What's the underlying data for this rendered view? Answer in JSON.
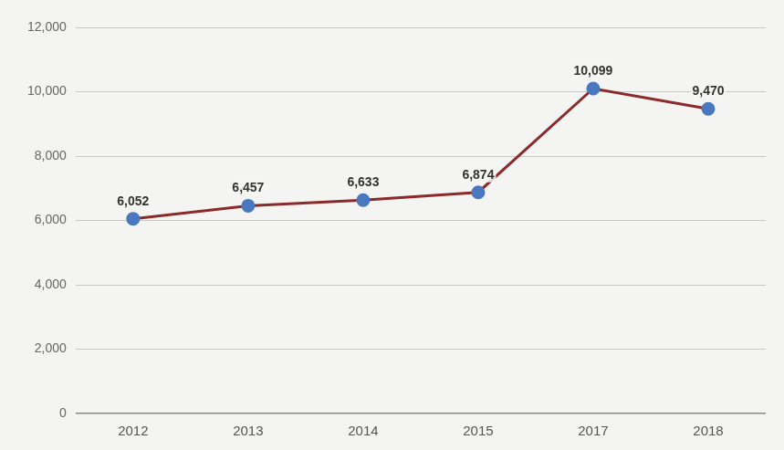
{
  "chart_data": {
    "type": "line",
    "categories": [
      "2012",
      "2013",
      "2014",
      "2015",
      "2017",
      "2018"
    ],
    "values": [
      6052,
      6457,
      6633,
      6874,
      10099,
      9470
    ],
    "value_labels": [
      "6,052",
      "6,457",
      "6,633",
      "6,874",
      "10,099",
      "9,470"
    ],
    "color": "#8b2a2a",
    "marker": "circle",
    "ylim": [
      0,
      12000
    ],
    "yticks": [
      0,
      {
        "value": 2000,
        "label": "2,000"
      },
      {
        "value": 4000,
        "label": "4,000"
      },
      {
        "value": 6000,
        "label": "6,000"
      },
      {
        "value": 8000,
        "label": "8,000"
      },
      {
        "value": 10000,
        "label": "10,000"
      },
      {
        "value": 12000,
        "label": "12,000"
      }
    ],
    "grid": true,
    "data_labels": true
  }
}
